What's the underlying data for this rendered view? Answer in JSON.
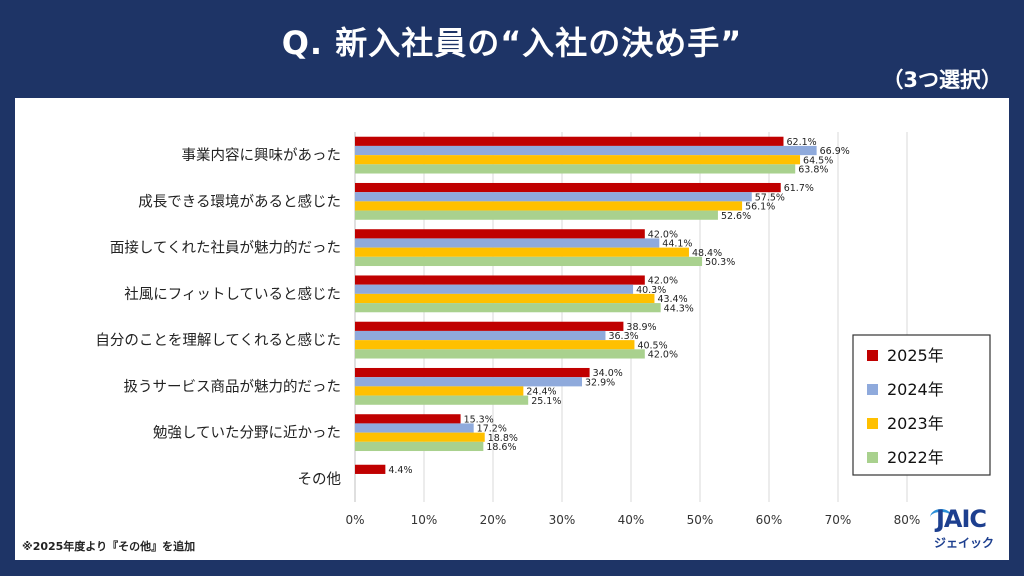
{
  "title": "Q. 新入社員の“入社の決め手”",
  "subtitle": "（3つ選択）",
  "note": "※2025年度より『その他』を追加",
  "logo": {
    "main": "JAIC",
    "sub": "ジェイック"
  },
  "chart_data": {
    "type": "bar",
    "orientation": "horizontal",
    "categories": [
      "事業内容に興味があった",
      "成長できる環境があると感じた",
      "面接してくれた社員が魅力的だった",
      "社風にフィットしていると感じた",
      "自分のことを理解してくれると感じた",
      "扱うサービス商品が魅力的だった",
      "勉強していた分野に近かった",
      "その他"
    ],
    "series": [
      {
        "name": "2025年",
        "color": "#c00000",
        "values": [
          62.1,
          61.7,
          42.0,
          42.0,
          38.9,
          34.0,
          15.3,
          4.4
        ]
      },
      {
        "name": "2024年",
        "color": "#8faadc",
        "values": [
          66.9,
          57.5,
          44.1,
          40.3,
          36.3,
          32.9,
          17.2,
          null
        ]
      },
      {
        "name": "2023年",
        "color": "#ffc000",
        "values": [
          64.5,
          56.1,
          48.4,
          43.4,
          40.5,
          24.4,
          18.8,
          null
        ]
      },
      {
        "name": "2022年",
        "color": "#a9d18e",
        "values": [
          63.8,
          52.6,
          50.3,
          44.3,
          42.0,
          25.1,
          18.6,
          null
        ]
      }
    ],
    "xlim": [
      0,
      80
    ],
    "xticks": [
      "0%",
      "10%",
      "20%",
      "30%",
      "40%",
      "50%",
      "60%",
      "70%",
      "80%"
    ],
    "value_suffix": "%",
    "grid": true,
    "legend_position": "right"
  }
}
